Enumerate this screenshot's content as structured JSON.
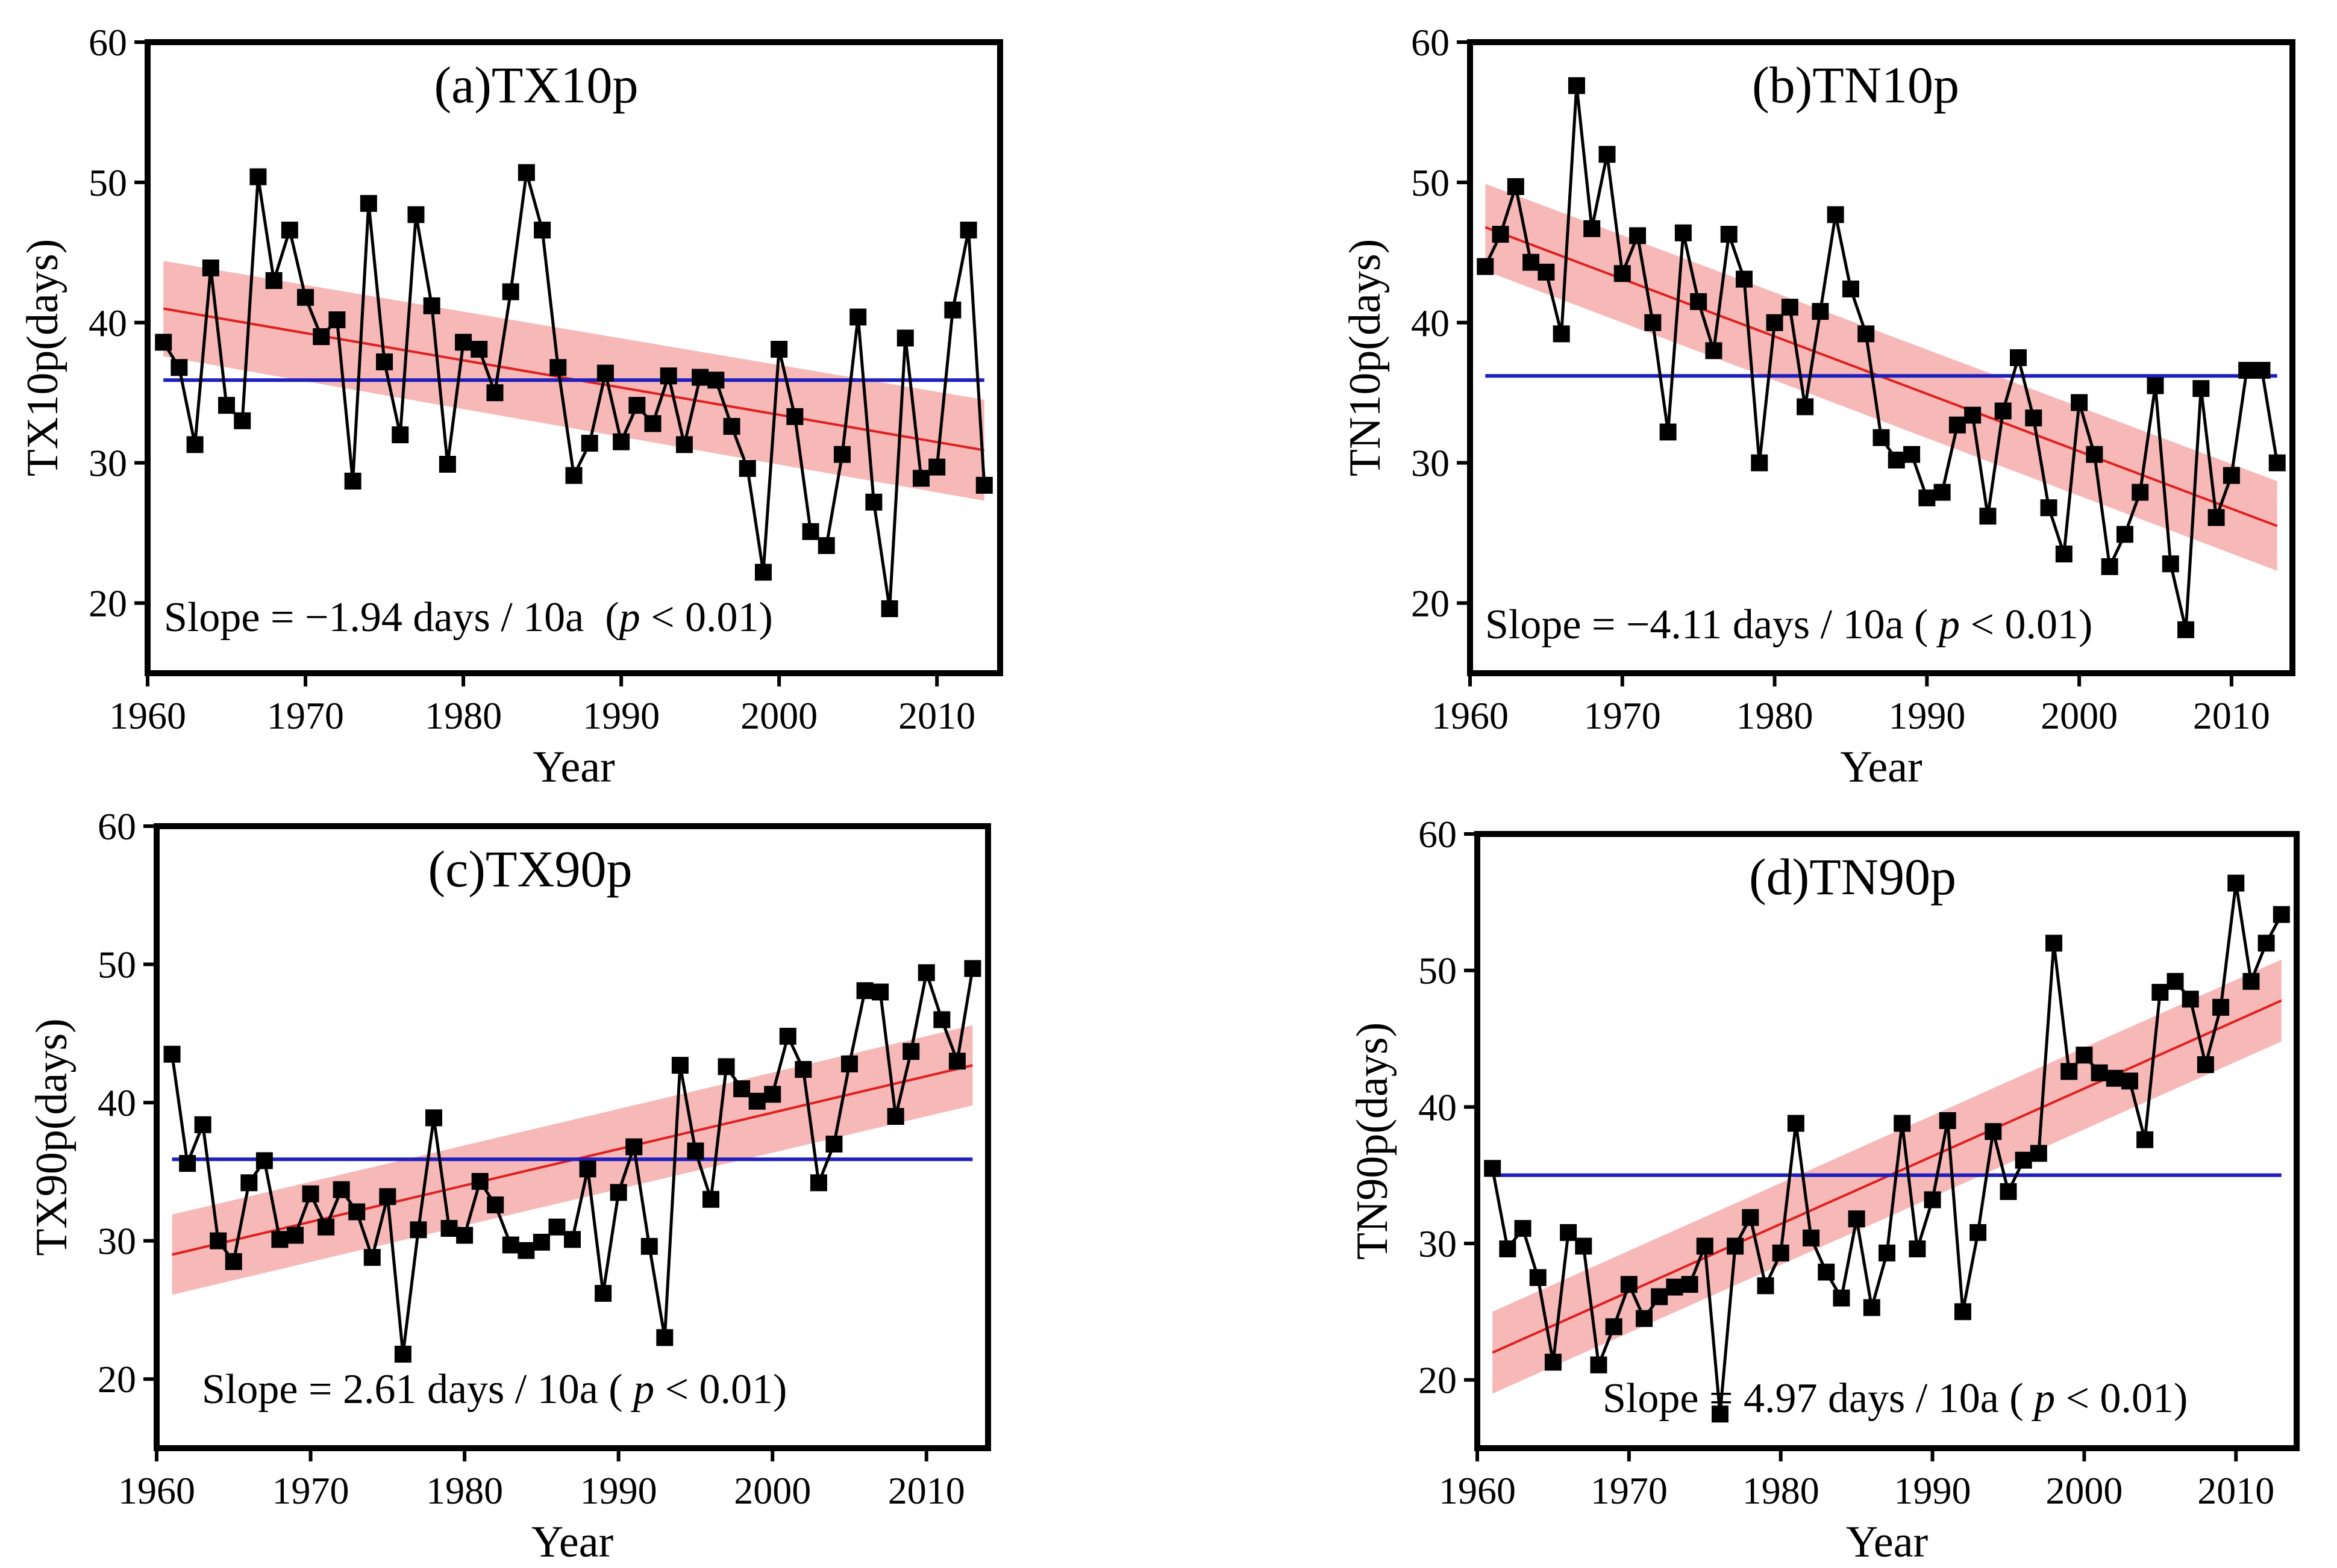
{
  "figure": {
    "xlabel": "Year",
    "slope_units": "days / 10a"
  },
  "chart_data": [
    {
      "type": "line",
      "title": "(a)TX10p",
      "ylabel": "TX10p(days)",
      "xlabel": "Year",
      "xlim": [
        1960,
        2014
      ],
      "ylim": [
        15,
        60
      ],
      "xticks": [
        "1960",
        "1970",
        "1980",
        "1990",
        "2000",
        "2010"
      ],
      "yticks": [
        "20",
        "30",
        "40",
        "50",
        "60"
      ],
      "series": [
        {
          "name": "TX10p",
          "x": [
            1961,
            1962,
            1963,
            1964,
            1965,
            1966,
            1967,
            1968,
            1969,
            1970,
            1971,
            1972,
            1973,
            1974,
            1975,
            1976,
            1977,
            1978,
            1979,
            1980,
            1981,
            1982,
            1983,
            1984,
            1985,
            1986,
            1987,
            1988,
            1989,
            1990,
            1991,
            1992,
            1993,
            1994,
            1995,
            1996,
            1997,
            1998,
            1999,
            2000,
            2001,
            2002,
            2003,
            2004,
            2005,
            2006,
            2007,
            2008,
            2009,
            2010,
            2011,
            2012,
            2013
          ],
          "values": [
            38.6,
            36.8,
            31.3,
            43.9,
            34.1,
            33.0,
            50.4,
            43.0,
            46.6,
            41.8,
            39.0,
            40.2,
            28.7,
            48.5,
            37.2,
            32.0,
            47.7,
            41.2,
            29.9,
            38.6,
            38.1,
            35.0,
            42.2,
            50.7,
            46.6,
            36.8,
            29.1,
            31.4,
            36.4,
            31.5,
            34.1,
            32.8,
            36.2,
            31.3,
            36.1,
            35.9,
            32.6,
            29.6,
            22.2,
            38.1,
            33.3,
            25.1,
            24.1,
            30.6,
            40.4,
            27.2,
            19.6,
            38.9,
            28.9,
            29.7,
            40.9,
            46.6,
            28.4
          ]
        },
        {
          "name": "Mean",
          "x": [
            1961,
            2013
          ],
          "values": [
            35.9,
            35.9
          ]
        },
        {
          "name": "Linear trend",
          "x": [
            1961,
            2013
          ],
          "values": [
            41.0,
            30.9
          ]
        },
        {
          "name": "Confidence band",
          "x": [
            1961,
            2013
          ],
          "upper": [
            44.4,
            34.5
          ],
          "lower": [
            37.6,
            27.3
          ]
        }
      ],
      "colors": {
        "data": "#000000",
        "mean": "#1f1fbf",
        "trend": "#e02020",
        "band": "#f4a0a0"
      },
      "annotation": {
        "prefix": "Slope = ",
        "slope": "−1.94",
        "units": "days / 10a",
        "p_open": "  (",
        "p_var": "p",
        "p_rest": " < 0.01)"
      }
    },
    {
      "type": "line",
      "title": "(b)TN10p",
      "ylabel": "TN10p(days)",
      "xlabel": "Year",
      "xlim": [
        1960,
        2014
      ],
      "ylim": [
        15,
        60
      ],
      "xticks": [
        "1960",
        "1970",
        "1980",
        "1990",
        "2000",
        "2010"
      ],
      "yticks": [
        "20",
        "30",
        "40",
        "50",
        "60"
      ],
      "series": [
        {
          "name": "TN10p",
          "x": [
            1961,
            1962,
            1963,
            1964,
            1965,
            1966,
            1967,
            1968,
            1969,
            1970,
            1971,
            1972,
            1973,
            1974,
            1975,
            1976,
            1977,
            1978,
            1979,
            1980,
            1981,
            1982,
            1983,
            1984,
            1985,
            1986,
            1987,
            1988,
            1989,
            1990,
            1991,
            1992,
            1993,
            1994,
            1995,
            1996,
            1997,
            1998,
            1999,
            2000,
            2001,
            2002,
            2003,
            2004,
            2005,
            2006,
            2007,
            2008,
            2009,
            2010,
            2011,
            2012,
            2013
          ],
          "values": [
            44.0,
            46.3,
            49.7,
            44.3,
            43.6,
            39.2,
            56.9,
            46.7,
            52.0,
            43.5,
            46.2,
            40.0,
            32.2,
            46.4,
            41.5,
            38.0,
            46.3,
            43.1,
            30.0,
            40.0,
            41.1,
            34.0,
            40.8,
            47.7,
            42.4,
            39.2,
            31.8,
            30.2,
            30.6,
            27.5,
            27.9,
            32.7,
            33.4,
            26.2,
            33.7,
            37.5,
            33.2,
            26.8,
            23.5,
            34.3,
            30.6,
            22.6,
            24.9,
            27.9,
            35.5,
            22.8,
            18.1,
            35.3,
            26.1,
            29.1,
            36.6,
            36.6,
            30.0
          ]
        },
        {
          "name": "Mean",
          "x": [
            1961,
            2013
          ],
          "values": [
            36.2,
            36.2
          ]
        },
        {
          "name": "Linear trend",
          "x": [
            1961,
            2013
          ],
          "values": [
            46.8,
            25.5
          ]
        },
        {
          "name": "Confidence band",
          "x": [
            1961,
            2013
          ],
          "upper": [
            49.9,
            28.7
          ],
          "lower": [
            43.7,
            22.3
          ]
        }
      ],
      "colors": {
        "data": "#000000",
        "mean": "#1f1fbf",
        "trend": "#e02020",
        "band": "#f4a0a0"
      },
      "annotation": {
        "prefix": "Slope = ",
        "slope": "−4.11",
        "units": "days / 10a",
        "p_open": " ( ",
        "p_var": "p",
        "p_rest": " < 0.01)"
      }
    },
    {
      "type": "line",
      "title": "(c)TX90p",
      "ylabel": "TX90p(days)",
      "xlabel": "Year",
      "xlim": [
        1960,
        2014
      ],
      "ylim": [
        15,
        60
      ],
      "xticks": [
        "1960",
        "1970",
        "1980",
        "1990",
        "2000",
        "2010"
      ],
      "yticks": [
        "20",
        "30",
        "40",
        "50",
        "60"
      ],
      "series": [
        {
          "name": "TX90p",
          "x": [
            1961,
            1962,
            1963,
            1964,
            1965,
            1966,
            1967,
            1968,
            1969,
            1970,
            1971,
            1972,
            1973,
            1974,
            1975,
            1976,
            1977,
            1978,
            1979,
            1980,
            1981,
            1982,
            1983,
            1984,
            1985,
            1986,
            1987,
            1988,
            1989,
            1990,
            1991,
            1992,
            1993,
            1994,
            1995,
            1996,
            1997,
            1998,
            1999,
            2000,
            2001,
            2002,
            2003,
            2004,
            2005,
            2006,
            2007,
            2008,
            2009,
            2010,
            2011,
            2012,
            2013
          ],
          "values": [
            43.5,
            35.6,
            38.4,
            30.0,
            28.5,
            34.2,
            35.8,
            30.1,
            30.4,
            33.4,
            31.0,
            33.7,
            32.1,
            28.8,
            33.2,
            21.8,
            30.8,
            38.9,
            30.9,
            30.4,
            34.3,
            32.6,
            29.7,
            29.3,
            29.9,
            31.0,
            30.1,
            35.2,
            26.2,
            33.5,
            36.8,
            29.6,
            23.0,
            42.7,
            36.5,
            33.0,
            42.6,
            41.0,
            40.1,
            40.6,
            44.8,
            42.4,
            34.2,
            37.0,
            42.8,
            48.1,
            48.0,
            39.0,
            43.7,
            49.4,
            46.0,
            43.0,
            49.7
          ]
        },
        {
          "name": "Mean",
          "x": [
            1961,
            2013
          ],
          "values": [
            35.9,
            35.9
          ]
        },
        {
          "name": "Linear trend",
          "x": [
            1961,
            2013
          ],
          "values": [
            29.0,
            42.7
          ]
        },
        {
          "name": "Confidence band",
          "x": [
            1961,
            2013
          ],
          "upper": [
            31.9,
            45.6
          ],
          "lower": [
            26.1,
            39.8
          ]
        }
      ],
      "colors": {
        "data": "#000000",
        "mean": "#1f1fbf",
        "trend": "#e02020",
        "band": "#f4a0a0"
      },
      "annotation": {
        "prefix": "Slope = ",
        "slope": "2.61",
        "units": "days / 10a",
        "p_open": " ( ",
        "p_var": "p",
        "p_rest": " < 0.01)"
      }
    },
    {
      "type": "line",
      "title": "(d)TN90p",
      "ylabel": "TN90p(days)",
      "xlabel": "Year",
      "xlim": [
        1960,
        2014
      ],
      "ylim": [
        15,
        60
      ],
      "xticks": [
        "1960",
        "1970",
        "1980",
        "1990",
        "2000",
        "2010"
      ],
      "yticks": [
        "20",
        "30",
        "40",
        "50",
        "60"
      ],
      "series": [
        {
          "name": "TN90p",
          "x": [
            1961,
            1962,
            1963,
            1964,
            1965,
            1966,
            1967,
            1968,
            1969,
            1970,
            1971,
            1972,
            1973,
            1974,
            1975,
            1976,
            1977,
            1978,
            1979,
            1980,
            1981,
            1982,
            1983,
            1984,
            1985,
            1986,
            1987,
            1988,
            1989,
            1990,
            1991,
            1992,
            1993,
            1994,
            1995,
            1996,
            1997,
            1998,
            1999,
            2000,
            2001,
            2002,
            2003,
            2004,
            2005,
            2006,
            2007,
            2008,
            2009,
            2010,
            2011,
            2012,
            2013
          ],
          "values": [
            35.5,
            29.6,
            31.1,
            27.5,
            21.3,
            30.8,
            29.8,
            21.1,
            23.9,
            27.0,
            24.5,
            26.1,
            26.8,
            27.0,
            29.8,
            17.5,
            29.8,
            31.9,
            26.9,
            29.3,
            38.8,
            30.4,
            27.9,
            26.0,
            31.8,
            25.3,
            29.3,
            38.8,
            29.6,
            33.2,
            39.0,
            25.0,
            30.8,
            38.2,
            33.8,
            36.1,
            36.6,
            52.0,
            42.6,
            43.8,
            42.5,
            42.1,
            41.9,
            37.6,
            48.4,
            49.2,
            47.9,
            43.1,
            47.3,
            56.4,
            49.2,
            52.0,
            54.1
          ]
        },
        {
          "name": "Mean",
          "x": [
            1961,
            2013
          ],
          "values": [
            35.0,
            35.0
          ]
        },
        {
          "name": "Linear trend",
          "x": [
            1961,
            2013
          ],
          "values": [
            22.0,
            47.8
          ]
        },
        {
          "name": "Confidence band",
          "x": [
            1961,
            2013
          ],
          "upper": [
            25.0,
            50.8
          ],
          "lower": [
            19.0,
            44.8
          ]
        }
      ],
      "colors": {
        "data": "#000000",
        "mean": "#1f1fbf",
        "trend": "#e02020",
        "band": "#f4a0a0"
      },
      "annotation": {
        "prefix": "Slope = ",
        "slope": "4.97",
        "units": "days / 10a",
        "p_open": " ( ",
        "p_var": "p",
        "p_rest": " < 0.01)"
      }
    }
  ]
}
